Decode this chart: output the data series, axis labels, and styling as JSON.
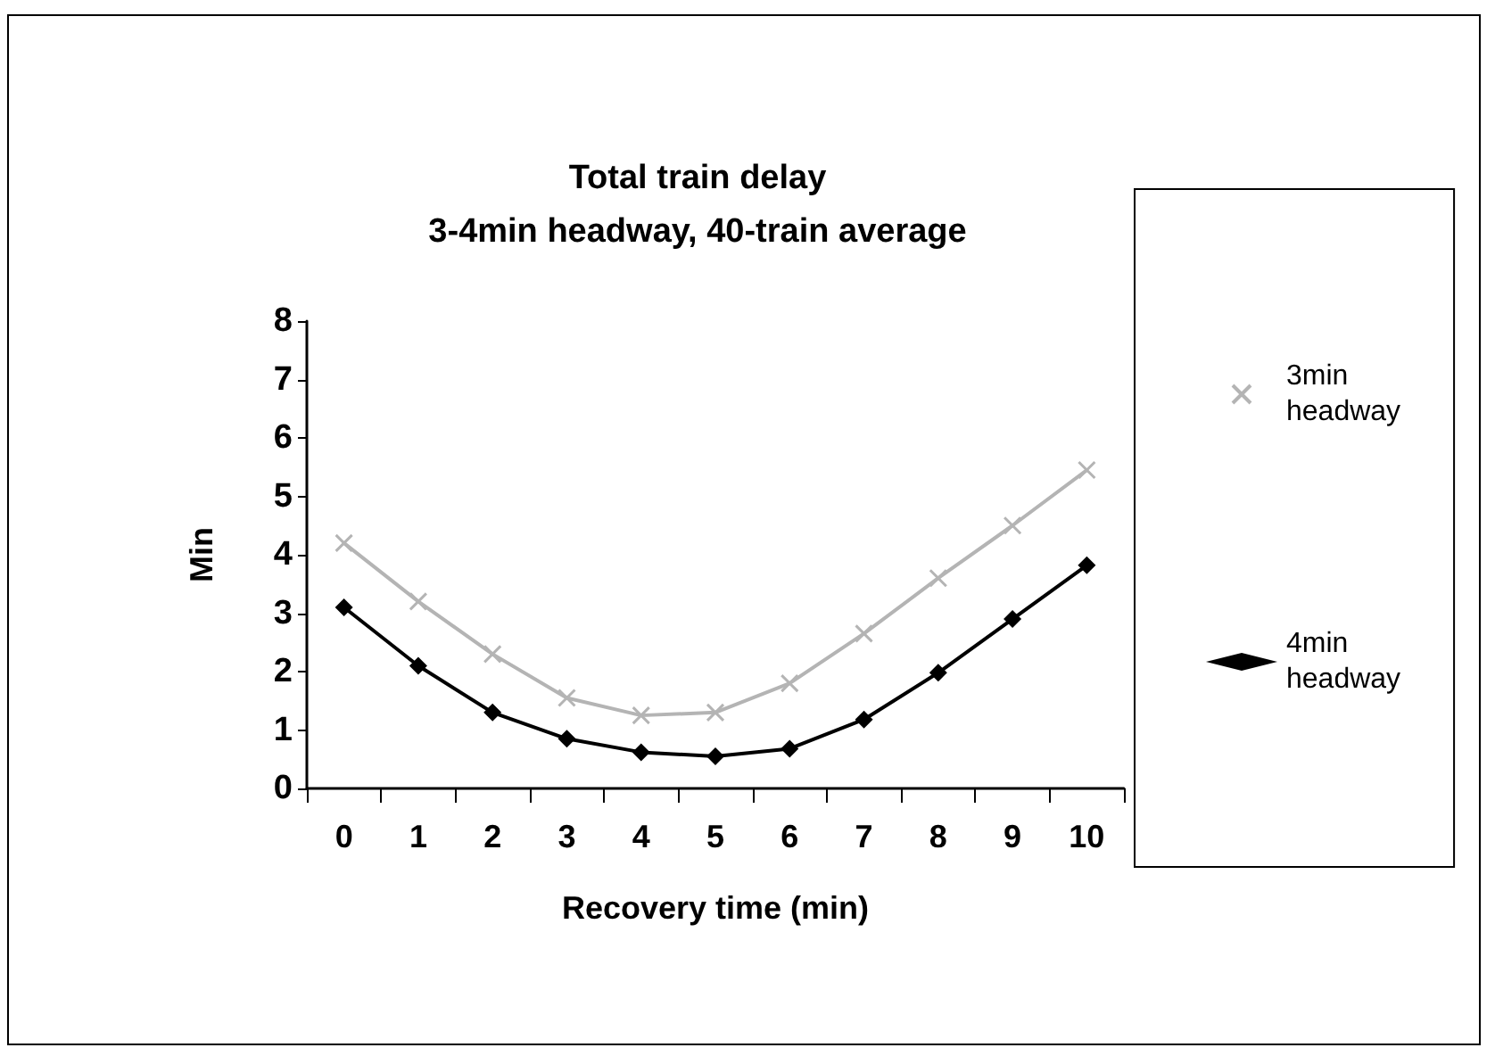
{
  "chart_data": {
    "type": "line",
    "title": "Total train delay\n3-4min headway, 40-train average",
    "xlabel": "Recovery time (min)",
    "ylabel": "Min",
    "categories": [
      "0",
      "1",
      "2",
      "3",
      "4",
      "5",
      "6",
      "7",
      "8",
      "9",
      "10"
    ],
    "series": [
      {
        "name": "3min headway",
        "color": "#b4b4b4",
        "marker": "cross",
        "values": [
          4.2,
          3.2,
          2.3,
          1.55,
          1.25,
          1.3,
          1.8,
          2.65,
          3.6,
          4.5,
          5.45
        ]
      },
      {
        "name": "4min headway",
        "color": "#000000",
        "marker": "diamond",
        "values": [
          3.1,
          2.1,
          1.3,
          0.85,
          0.62,
          0.55,
          0.68,
          1.18,
          1.98,
          2.9,
          3.82
        ]
      }
    ],
    "ylim": [
      0,
      8
    ],
    "yticks": [
      0,
      1,
      2,
      3,
      4,
      5,
      6,
      7,
      8
    ],
    "grid": false,
    "legend": "right"
  }
}
